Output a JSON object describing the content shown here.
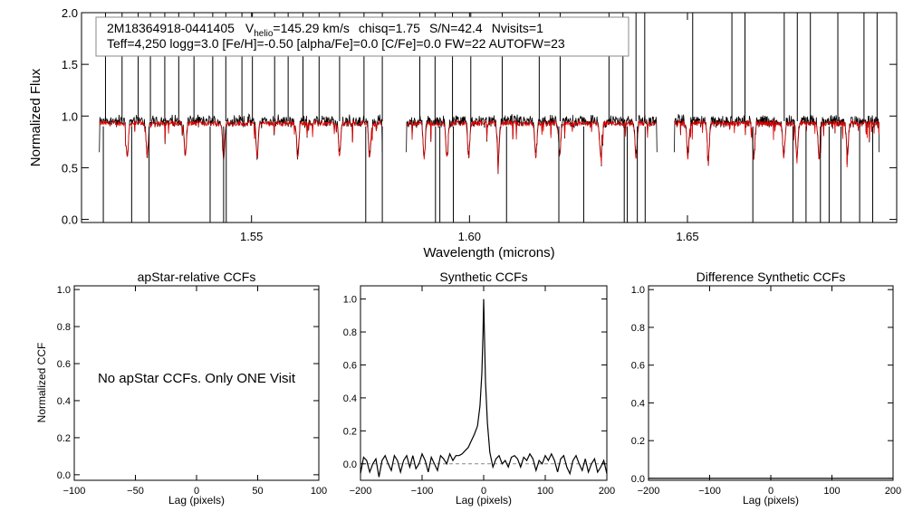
{
  "header": {
    "object_id": "2M18364918-0441405",
    "v_label": "V",
    "v_sub": "helio",
    "v_value": "=145.29 km/s",
    "chisq": "chisq=1.75",
    "snr": "S/N=42.4",
    "nvisits": "Nvisits=1",
    "params_line": "Teff=4,250 logg=3.0 [Fe/H]=-0.50 [alpha/Fe]=0.0 [C/Fe]=0.0 FW=22 AUTOFW=23"
  },
  "no_ccf_message": "No apStar CCFs.  Only ONE Visit",
  "colors": {
    "observed": "#000000",
    "model": "#dd0000",
    "zero_line": "#888888"
  },
  "chart_data": [
    {
      "id": "spectrum",
      "type": "line",
      "xlabel": "Wavelength (microns)",
      "ylabel": "Normalized Flux",
      "xlim": [
        1.511,
        1.698
      ],
      "ylim": [
        -0.03,
        2.0
      ],
      "xticks": [
        1.55,
        1.6,
        1.65
      ],
      "xtick_labels": [
        "1.55",
        "1.60",
        "1.65"
      ],
      "yticks": [
        0.0,
        0.5,
        1.0,
        1.5,
        2.0
      ],
      "ytick_labels": [
        "0.0",
        "0.5",
        "1.0",
        "1.5",
        "2.0"
      ],
      "segments": [
        [
          1.5151,
          1.58
        ],
        [
          1.5855,
          1.643
        ],
        [
          1.647,
          1.694
        ]
      ],
      "continuum_observed": 0.94,
      "continuum_model": 0.93,
      "series": [
        {
          "role": "observed",
          "spikes_up": [
            1.5165,
            1.5203,
            1.524,
            1.5268,
            1.5301,
            1.5333,
            1.5368,
            1.5411,
            1.5441,
            1.5478,
            1.5502,
            1.5553,
            1.5584,
            1.5618,
            1.5655,
            1.5702,
            1.5758,
            1.58,
            1.5886,
            1.5921,
            1.5961,
            1.6003,
            1.6075,
            1.616,
            1.6208,
            1.632,
            1.6352,
            1.6382,
            1.6402,
            1.6512,
            1.6602,
            1.6632,
            1.6722,
            1.6752,
            1.6782,
            1.6845,
            1.6905,
            1.6935
          ],
          "spikes_down": [
            1.516,
            1.5225,
            1.5265,
            1.5405,
            1.5436,
            1.5442,
            1.5762,
            1.58,
            1.5922,
            1.5932,
            1.5963,
            1.6085,
            1.6205,
            1.6262,
            1.6355,
            1.6362,
            1.6385,
            1.6403,
            1.665,
            1.6742,
            1.6772,
            1.6805,
            1.6825,
            1.6852,
            1.6895,
            1.6925
          ]
        },
        {
          "role": "model",
          "absorption_lines": [
            1.5215,
            1.5261,
            1.5348,
            1.5436,
            1.5513,
            1.5606,
            1.5702,
            1.5771,
            1.5896,
            1.5948,
            1.5998,
            1.6066,
            1.6152,
            1.6207,
            1.6301,
            1.6382,
            1.6501,
            1.6548,
            1.6652,
            1.6721,
            1.6751,
            1.6802,
            1.6867
          ]
        }
      ]
    },
    {
      "id": "ccf-apstar",
      "type": "line",
      "title": "apStar-relative CCFs",
      "xlabel": "Lag (pixels)",
      "ylabel": "Normalized CCF",
      "xlim": [
        -100,
        100
      ],
      "ylim": [
        -0.03,
        1.02
      ],
      "xticks": [
        -100,
        -50,
        0,
        50,
        100
      ],
      "xtick_labels": [
        "−100",
        "−50",
        "0",
        "50",
        "100"
      ],
      "yticks": [
        0.0,
        0.2,
        0.4,
        0.6,
        0.8,
        1.0
      ],
      "ytick_labels": [
        "0.0",
        "0.2",
        "0.4",
        "0.6",
        "0.8",
        "1.0"
      ],
      "series": []
    },
    {
      "id": "ccf-synthetic",
      "type": "line",
      "title": "Synthetic CCFs",
      "xlabel": "Lag (pixels)",
      "ylabel": "",
      "xlim": [
        -200,
        200
      ],
      "ylim": [
        -0.1,
        1.08
      ],
      "xticks": [
        -200,
        -100,
        0,
        100,
        200
      ],
      "xtick_labels": [
        "−200",
        "−100",
        "0",
        "100",
        "200"
      ],
      "yticks": [
        0.0,
        0.2,
        0.4,
        0.6,
        0.8,
        1.0
      ],
      "ytick_labels": [
        "0.0",
        "0.2",
        "0.4",
        "0.6",
        "0.8",
        "1.0"
      ],
      "zero_line": 0.0,
      "series": [
        {
          "role": "ccf",
          "x": [
            -200,
            -195,
            -190,
            -185,
            -180,
            -175,
            -170,
            -165,
            -160,
            -155,
            -150,
            -145,
            -140,
            -135,
            -130,
            -125,
            -120,
            -115,
            -110,
            -105,
            -100,
            -95,
            -90,
            -85,
            -80,
            -75,
            -70,
            -65,
            -60,
            -55,
            -50,
            -45,
            -40,
            -35,
            -30,
            -25,
            -20,
            -15,
            -10,
            -6,
            -3,
            -1,
            0,
            1,
            3,
            6,
            10,
            15,
            20,
            25,
            30,
            35,
            40,
            45,
            50,
            55,
            60,
            65,
            70,
            75,
            80,
            85,
            90,
            95,
            100,
            105,
            110,
            115,
            120,
            125,
            130,
            135,
            140,
            145,
            150,
            155,
            160,
            165,
            170,
            175,
            180,
            185,
            190,
            195,
            200
          ],
          "y": [
            -0.06,
            0.04,
            0.02,
            -0.05,
            0.0,
            0.03,
            -0.08,
            0.02,
            0.05,
            0.0,
            -0.04,
            0.05,
            0.02,
            -0.05,
            0.02,
            0.05,
            -0.02,
            0.05,
            -0.03,
            0.0,
            0.06,
            0.02,
            -0.05,
            0.04,
            0.0,
            -0.04,
            0.05,
            0.03,
            0.0,
            0.06,
            0.02,
            0.05,
            0.05,
            0.06,
            0.08,
            0.1,
            0.14,
            0.18,
            0.23,
            0.35,
            0.55,
            0.8,
            1.0,
            0.82,
            0.5,
            0.25,
            0.07,
            -0.02,
            0.03,
            0.05,
            0.0,
            0.02,
            -0.02,
            0.04,
            0.05,
            0.03,
            -0.02,
            0.04,
            0.02,
            0.06,
            0.03,
            -0.04,
            0.02,
            0.0,
            0.05,
            0.02,
            0.06,
            0.02,
            -0.05,
            0.03,
            0.05,
            -0.02,
            -0.06,
            0.02,
            0.05,
            0.0,
            -0.04,
            0.03,
            -0.05,
            0.0,
            0.03,
            -0.05,
            -0.02,
            0.02,
            -0.06
          ]
        }
      ]
    },
    {
      "id": "ccf-difference",
      "type": "line",
      "title": "Difference Synthetic CCFs",
      "xlabel": "Lag (pixels)",
      "ylabel": "",
      "xlim": [
        -200,
        200
      ],
      "ylim": [
        -0.01,
        1.02
      ],
      "xticks": [
        -200,
        -100,
        0,
        100,
        200
      ],
      "xtick_labels": [
        "−200",
        "−100",
        "0",
        "100",
        "200"
      ],
      "yticks": [
        0.0,
        0.2,
        0.4,
        0.6,
        0.8,
        1.0
      ],
      "ytick_labels": [
        "0.0",
        "0.2",
        "0.4",
        "0.6",
        "0.8",
        "1.0"
      ],
      "series": [
        {
          "role": "difference",
          "x": [
            -200,
            200
          ],
          "y": [
            0.0,
            0.0
          ]
        }
      ]
    }
  ]
}
